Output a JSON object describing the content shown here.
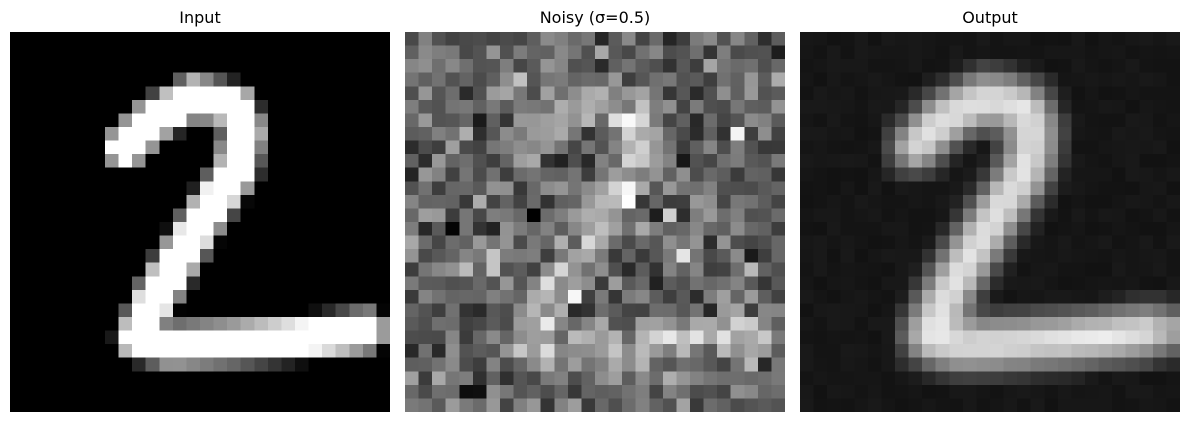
{
  "panels": [
    {
      "id": "input",
      "title": "Input"
    },
    {
      "id": "noisy",
      "title": "Noisy (σ=0.5)"
    },
    {
      "id": "output",
      "title": "Output"
    }
  ]
}
